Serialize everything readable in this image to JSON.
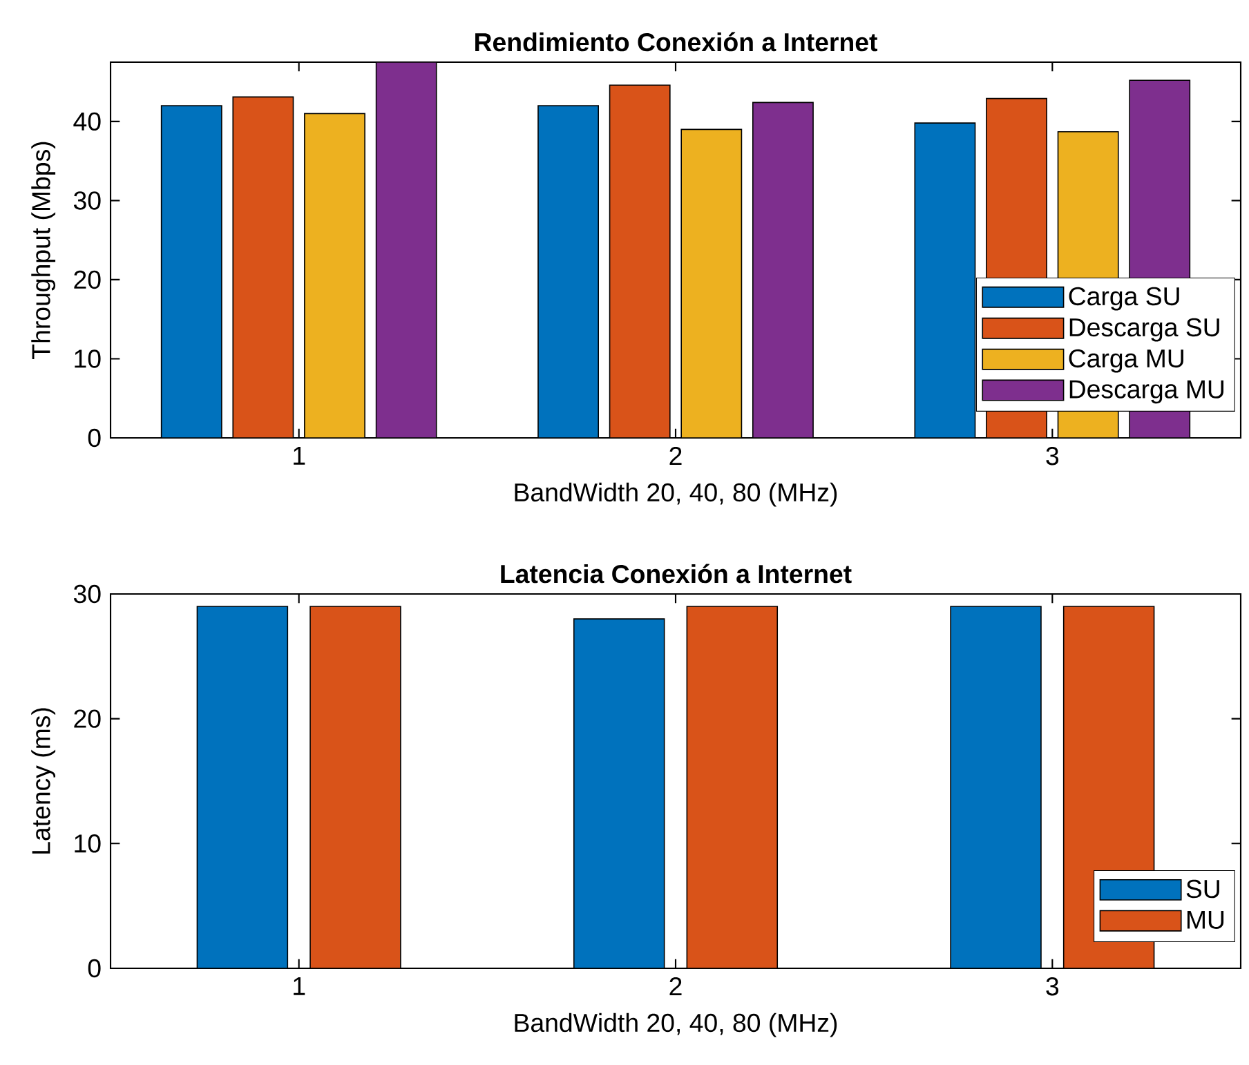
{
  "chart_data": [
    {
      "type": "bar",
      "title": "Rendimiento Conexión a Internet",
      "xlabel": "BandWidth 20, 40, 80 (MHz)",
      "ylabel": "Throughput (Mbps)",
      "categories": [
        "1",
        "2",
        "3"
      ],
      "series": [
        {
          "name": "Carga SU",
          "color": "#0072bd",
          "values": [
            42,
            42,
            39.8
          ]
        },
        {
          "name": "Descarga SU",
          "color": "#d95319",
          "values": [
            43.1,
            44.6,
            42.9
          ]
        },
        {
          "name": "Carga MU",
          "color": "#edb120",
          "values": [
            41,
            39,
            38.7
          ]
        },
        {
          "name": "Descarga MU",
          "color": "#7e2f8e",
          "values": [
            47.5,
            42.4,
            45.2
          ]
        }
      ],
      "ylim": [
        0,
        47.5
      ],
      "yticks": [
        0,
        10,
        20,
        30,
        40
      ],
      "legend": "bottom right"
    },
    {
      "type": "bar",
      "title": "Latencia Conexión a Internet",
      "xlabel": "BandWidth 20, 40, 80 (MHz)",
      "ylabel": "Latency (ms)",
      "categories": [
        "1",
        "2",
        "3"
      ],
      "series": [
        {
          "name": "SU",
          "color": "#0072bd",
          "values": [
            29,
            28,
            29
          ]
        },
        {
          "name": "MU",
          "color": "#d95319",
          "values": [
            29,
            29,
            29
          ]
        }
      ],
      "ylim": [
        0,
        30
      ],
      "yticks": [
        0,
        10,
        20,
        30
      ],
      "legend": "bottom right"
    }
  ]
}
